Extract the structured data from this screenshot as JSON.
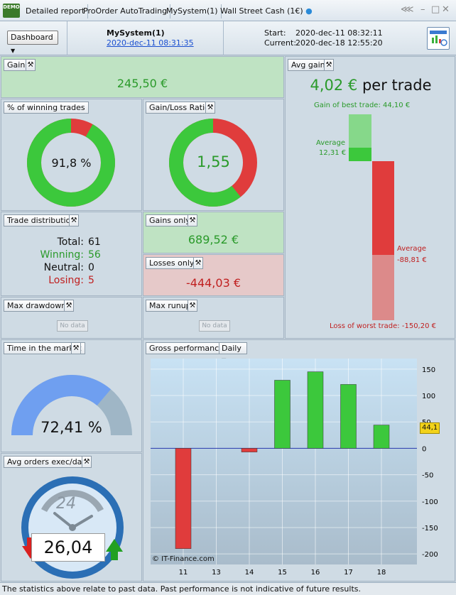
{
  "tabs": {
    "logo": "DEMO",
    "items": [
      "Detailed report",
      "ProOrder AutoTrading",
      "MySystem(1)",
      "Wall Street Cash (1€)"
    ]
  },
  "header": {
    "dashboard_label": "Dashboard",
    "system_name": "MySystem(1)",
    "system_date": "2020-dec-11 08:31:35",
    "start_label": "Start:",
    "start_value": "2020-dec-11 08:32:11",
    "current_label": "Current:",
    "current_value": "2020-dec-18 12:55:20"
  },
  "gain": {
    "title": "Gain",
    "value": "245,50 €"
  },
  "avg_gain": {
    "title": "Avg gain",
    "value": "4,02 €",
    "suffix": "per trade",
    "best_label": "Gain of best trade: 44,10 €",
    "avg_pos_label": "Average",
    "avg_pos_value": "12,31 €",
    "avg_neg_label": "Average",
    "avg_neg_value": "-88,81 €",
    "worst_label": "Loss of worst trade: -150,20 €",
    "best": 44.1,
    "avg_pos": 12.31,
    "avg_neg": -88.81,
    "worst": -150.2
  },
  "winning_pct": {
    "title": "% of winning trades",
    "value": "91,8 %",
    "fraction": 0.918
  },
  "gl_ratio": {
    "title": "Gain/Loss Ratio",
    "value": "1,55",
    "fraction": 0.608
  },
  "trade_dist": {
    "title": "Trade distribution",
    "rows": [
      {
        "label": "Total:",
        "value": "61"
      },
      {
        "label": "Winning:",
        "value": "56"
      },
      {
        "label": "Neutral:",
        "value": "0"
      },
      {
        "label": "Losing:",
        "value": "5"
      }
    ]
  },
  "gains_only": {
    "title": "Gains only",
    "value": "689,52 €"
  },
  "losses_only": {
    "title": "Losses only",
    "value": "-444,03 €"
  },
  "max_drawdown": {
    "title": "Max drawdown",
    "nodata": "No data"
  },
  "max_runup": {
    "title": "Max runup",
    "nodata": "No data"
  },
  "time_market": {
    "title": "Time in the market",
    "value": "72,41 %",
    "fraction": 0.7241
  },
  "avg_orders": {
    "title": "Avg orders exec/day",
    "dial": "24",
    "value": "26,04"
  },
  "gross_perf": {
    "title": "Gross performance",
    "period": "Daily",
    "watermark": "© IT-Finance.com",
    "last_label": "44,1"
  },
  "chart_data": {
    "type": "bar",
    "title": "Gross performance",
    "categories": [
      "11",
      "13",
      "14",
      "15",
      "16",
      "17",
      "18"
    ],
    "values": [
      -190,
      0,
      -7,
      129,
      145,
      121,
      44.1
    ],
    "ylim": [
      -220,
      170
    ],
    "yticks": [
      150,
      100,
      50,
      0,
      -50,
      -100,
      -150,
      -200
    ],
    "ytick_labels": [
      "150",
      "100",
      "50",
      "0",
      "-50",
      "-100",
      "-150",
      "-200"
    ],
    "colors": {
      "positive": "#3cc83c",
      "negative": "#e03c3c",
      "zero_line": "#2233aa"
    }
  },
  "footer": {
    "text": "The statistics above relate to past data. Past performance is not indicative of future results."
  }
}
